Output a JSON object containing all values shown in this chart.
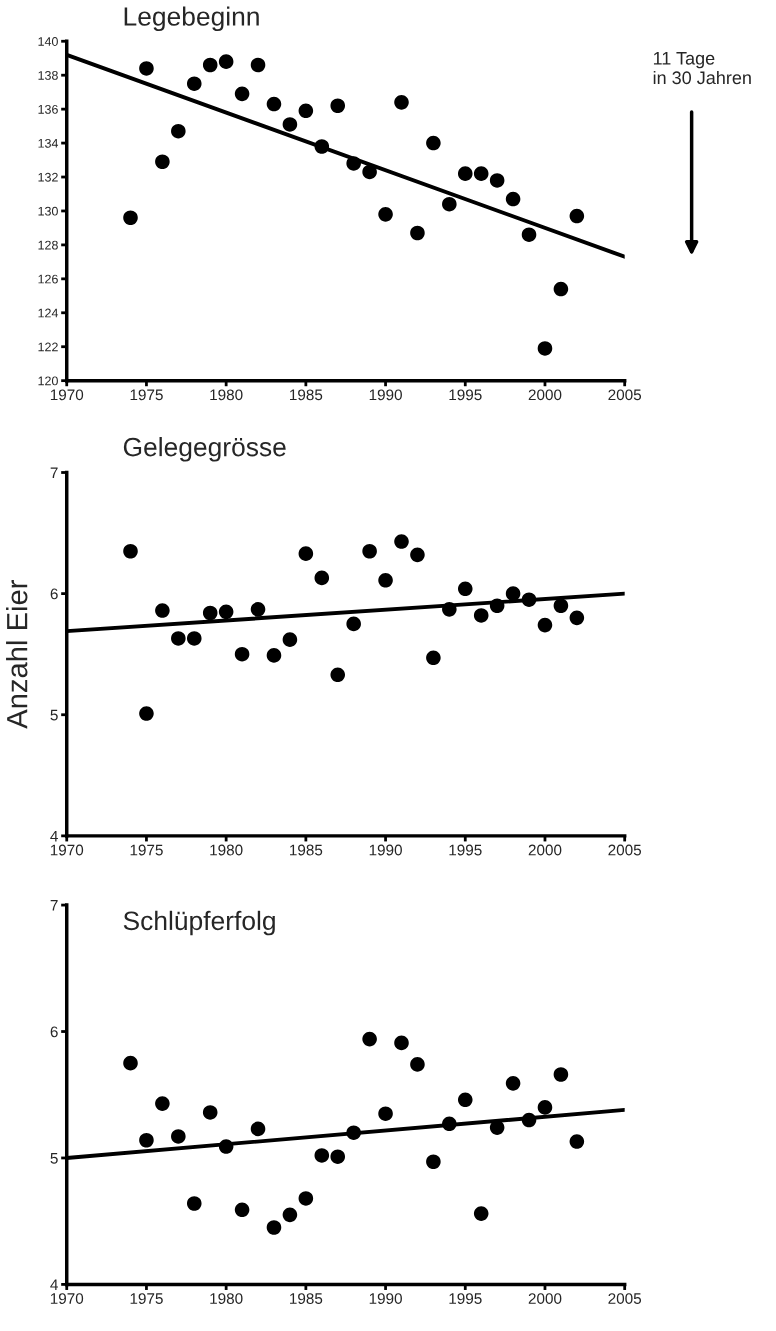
{
  "chart_data": [
    {
      "type": "scatter",
      "title": "Legebeginn",
      "annotations": [
        "11 Tage\nin 30 Jahren"
      ],
      "xlim": [
        1970,
        2005
      ],
      "xticks": [
        1970,
        1975,
        1980,
        1985,
        1990,
        1995,
        2000,
        2005
      ],
      "ylim": [
        120,
        140
      ],
      "yticks": [
        120,
        122,
        124,
        126,
        128,
        130,
        132,
        134,
        136,
        138,
        140
      ],
      "grid": false,
      "series": [
        {
          "marker": "circle",
          "color": "#000000",
          "x": [
            1974,
            1975,
            1976,
            1977,
            1978,
            1979,
            1980,
            1981,
            1982,
            1983,
            1984,
            1985,
            1986,
            1987,
            1988,
            1989,
            1990,
            1991,
            1992,
            1993,
            1994,
            1995,
            1996,
            1997,
            1998,
            1999,
            2000,
            2001,
            2002
          ],
          "values": [
            129.6,
            138.4,
            132.9,
            134.7,
            137.5,
            138.6,
            138.8,
            136.9,
            138.6,
            136.3,
            135.1,
            135.9,
            133.8,
            136.2,
            132.8,
            132.3,
            129.8,
            136.4,
            128.7,
            134.0,
            130.4,
            132.2,
            132.2,
            131.8,
            130.7,
            128.6,
            121.9,
            125.4,
            129.7
          ]
        },
        {
          "type": "line",
          "color": "#000000",
          "x": [
            1970,
            2005
          ],
          "values": [
            139.2,
            127.3
          ]
        }
      ]
    },
    {
      "type": "scatter",
      "title": "Gelegegrösse",
      "ylabel": "Anzahl Eier",
      "xlim": [
        1970,
        2005
      ],
      "xticks": [
        1970,
        1975,
        1980,
        1985,
        1990,
        1995,
        2000,
        2005
      ],
      "ylim": [
        4,
        7
      ],
      "yticks": [
        4,
        5,
        6,
        7
      ],
      "grid": false,
      "series": [
        {
          "marker": "circle",
          "color": "#000000",
          "x": [
            1974,
            1975,
            1976,
            1977,
            1978,
            1979,
            1980,
            1981,
            1982,
            1983,
            1984,
            1985,
            1986,
            1987,
            1988,
            1989,
            1990,
            1991,
            1992,
            1993,
            1994,
            1995,
            1996,
            1997,
            1998,
            1999,
            2000,
            2001,
            2002
          ],
          "values": [
            6.35,
            5.01,
            5.86,
            5.63,
            5.63,
            5.84,
            5.85,
            5.5,
            5.87,
            5.49,
            5.62,
            6.33,
            6.13,
            5.33,
            5.75,
            6.35,
            6.11,
            6.43,
            6.32,
            5.47,
            5.87,
            6.04,
            5.82,
            5.9,
            6.0,
            5.95,
            5.74,
            5.9,
            5.8
          ]
        },
        {
          "type": "line",
          "color": "#000000",
          "x": [
            1970,
            2005
          ],
          "values": [
            5.69,
            6.0
          ]
        }
      ]
    },
    {
      "type": "scatter",
      "title": "Schlüpferfolg",
      "xlim": [
        1970,
        2005
      ],
      "xticks": [
        1970,
        1975,
        1980,
        1985,
        1990,
        1995,
        2000,
        2005
      ],
      "ylim": [
        4,
        7
      ],
      "yticks": [
        4,
        5,
        6,
        7
      ],
      "grid": false,
      "series": [
        {
          "marker": "circle",
          "color": "#000000",
          "x": [
            1974,
            1975,
            1976,
            1977,
            1978,
            1979,
            1980,
            1981,
            1982,
            1983,
            1984,
            1985,
            1986,
            1987,
            1988,
            1989,
            1990,
            1991,
            1992,
            1993,
            1994,
            1995,
            1996,
            1997,
            1998,
            1999,
            2000,
            2001,
            2002
          ],
          "values": [
            5.75,
            5.14,
            5.43,
            5.17,
            4.64,
            5.36,
            5.09,
            4.59,
            5.23,
            4.45,
            4.55,
            4.68,
            5.02,
            5.01,
            5.2,
            5.94,
            5.35,
            5.91,
            5.74,
            4.97,
            5.27,
            5.46,
            4.56,
            5.24,
            5.59,
            5.3,
            5.4,
            5.66,
            5.13
          ]
        },
        {
          "type": "line",
          "color": "#000000",
          "x": [
            1970,
            2005
          ],
          "values": [
            5.0,
            5.38
          ]
        }
      ]
    }
  ]
}
